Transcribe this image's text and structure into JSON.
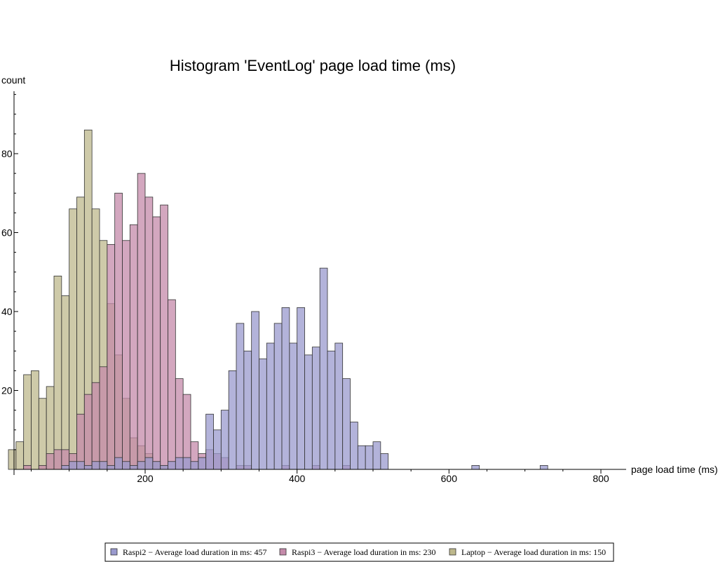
{
  "chart_data": {
    "type": "bar",
    "title": "Histogram 'EventLog' page load time (ms)",
    "xlabel": "page load time (ms)",
    "ylabel": "count",
    "xlim": [
      20,
      830
    ],
    "ylim": [
      0,
      95
    ],
    "bin_width": 10,
    "x_ticks": [
      200,
      400,
      600,
      800
    ],
    "y_ticks": [
      20,
      40,
      60,
      80
    ],
    "legend_position": "bottom",
    "series": [
      {
        "name": "Laptop",
        "legend_label": "Laptop − Average load duration in ms: 150",
        "color": "#bdb88c",
        "bins": [
          [
            20,
            5
          ],
          [
            30,
            7
          ],
          [
            40,
            24
          ],
          [
            50,
            25
          ],
          [
            60,
            18
          ],
          [
            70,
            21
          ],
          [
            80,
            49
          ],
          [
            90,
            44
          ],
          [
            100,
            66
          ],
          [
            110,
            69
          ],
          [
            120,
            86
          ],
          [
            130,
            66
          ],
          [
            140,
            58
          ],
          [
            150,
            42
          ],
          [
            160,
            29
          ],
          [
            170,
            18
          ],
          [
            180,
            8
          ],
          [
            190,
            6
          ],
          [
            200,
            4
          ],
          [
            210,
            2
          ],
          [
            220,
            1
          ]
        ]
      },
      {
        "name": "Raspi3",
        "legend_label": "Raspi3 − Average load duration in ms: 230",
        "color": "#c48aaa",
        "bins": [
          [
            40,
            1
          ],
          [
            60,
            1
          ],
          [
            70,
            4
          ],
          [
            80,
            5
          ],
          [
            90,
            5
          ],
          [
            100,
            4
          ],
          [
            110,
            14
          ],
          [
            120,
            19
          ],
          [
            130,
            22
          ],
          [
            140,
            26
          ],
          [
            150,
            57
          ],
          [
            160,
            70
          ],
          [
            170,
            58
          ],
          [
            180,
            62
          ],
          [
            190,
            75
          ],
          [
            200,
            69
          ],
          [
            210,
            64
          ],
          [
            220,
            67
          ],
          [
            230,
            43
          ],
          [
            240,
            23
          ],
          [
            250,
            19
          ],
          [
            260,
            7
          ],
          [
            270,
            4
          ],
          [
            280,
            5
          ],
          [
            290,
            4
          ],
          [
            300,
            3
          ],
          [
            320,
            1
          ],
          [
            330,
            1
          ],
          [
            380,
            1
          ],
          [
            420,
            1
          ],
          [
            460,
            1
          ]
        ]
      },
      {
        "name": "Raspi2",
        "legend_label": "Raspi2 − Average load duration in ms: 457",
        "color": "#9a9ace",
        "bins": [
          [
            90,
            1
          ],
          [
            100,
            2
          ],
          [
            110,
            2
          ],
          [
            120,
            1
          ],
          [
            130,
            2
          ],
          [
            140,
            2
          ],
          [
            150,
            1
          ],
          [
            160,
            3
          ],
          [
            170,
            2
          ],
          [
            180,
            1
          ],
          [
            190,
            2
          ],
          [
            200,
            3
          ],
          [
            210,
            2
          ],
          [
            220,
            1
          ],
          [
            230,
            2
          ],
          [
            240,
            3
          ],
          [
            250,
            3
          ],
          [
            260,
            2
          ],
          [
            270,
            3
          ],
          [
            280,
            14
          ],
          [
            290,
            10
          ],
          [
            300,
            15
          ],
          [
            310,
            25
          ],
          [
            320,
            37
          ],
          [
            330,
            30
          ],
          [
            340,
            40
          ],
          [
            350,
            28
          ],
          [
            360,
            32
          ],
          [
            370,
            37
          ],
          [
            380,
            41
          ],
          [
            390,
            32
          ],
          [
            400,
            41
          ],
          [
            410,
            29
          ],
          [
            420,
            31
          ],
          [
            430,
            51
          ],
          [
            440,
            30
          ],
          [
            450,
            32
          ],
          [
            460,
            23
          ],
          [
            470,
            12
          ],
          [
            480,
            6
          ],
          [
            490,
            6
          ],
          [
            500,
            7
          ],
          [
            510,
            4
          ],
          [
            630,
            1
          ],
          [
            720,
            1
          ]
        ]
      }
    ]
  }
}
